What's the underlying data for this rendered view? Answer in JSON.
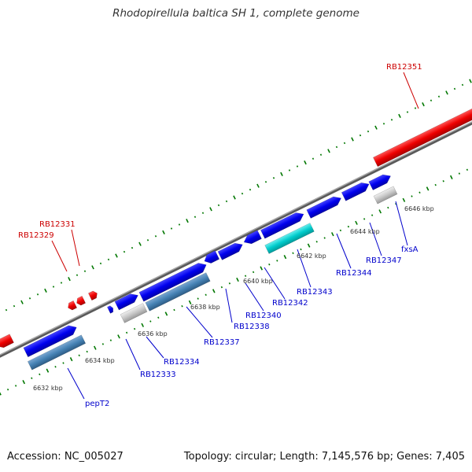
{
  "title": "Rhodopirellula baltica SH 1, complete genome",
  "footer": {
    "accession": "Accession: NC_005027",
    "summary": "Topology: circular; Length: 7,145,576 bp; Genes: 7,405"
  },
  "colors": {
    "forward_gene": "#0000ee",
    "reverse_gene": "#ee0000",
    "rna_gene": "#00cccc",
    "pseudo_gene": "#c8c8c8",
    "cds_block": "#4682b4",
    "forward_label": "#0000cc",
    "reverse_label": "#cc0000",
    "tick_marks": "#007700",
    "backbone": "#8c8c8c"
  },
  "kbp_ticks": [
    {
      "label": "6632 kbp"
    },
    {
      "label": "6634 kbp"
    },
    {
      "label": "6636 kbp"
    },
    {
      "label": "6638 kbp"
    },
    {
      "label": "6640 kbp"
    },
    {
      "label": "6642 kbp"
    },
    {
      "label": "6644 kbp"
    },
    {
      "label": "6646 kbp"
    }
  ],
  "gene_labels": [
    {
      "text": "RB12351",
      "strand": "reverse"
    },
    {
      "text": "RB12331",
      "strand": "reverse"
    },
    {
      "text": "RB12329",
      "strand": "reverse"
    },
    {
      "text": "fxsA",
      "strand": "forward"
    },
    {
      "text": "RB12347",
      "strand": "forward"
    },
    {
      "text": "RB12344",
      "strand": "forward"
    },
    {
      "text": "RB12343",
      "strand": "forward"
    },
    {
      "text": "RB12342",
      "strand": "forward"
    },
    {
      "text": "RB12340",
      "strand": "forward"
    },
    {
      "text": "RB12338",
      "strand": "forward"
    },
    {
      "text": "RB12337",
      "strand": "forward"
    },
    {
      "text": "RB12334",
      "strand": "forward"
    },
    {
      "text": "RB12333",
      "strand": "forward"
    },
    {
      "text": "pepT2",
      "strand": "forward"
    }
  ]
}
